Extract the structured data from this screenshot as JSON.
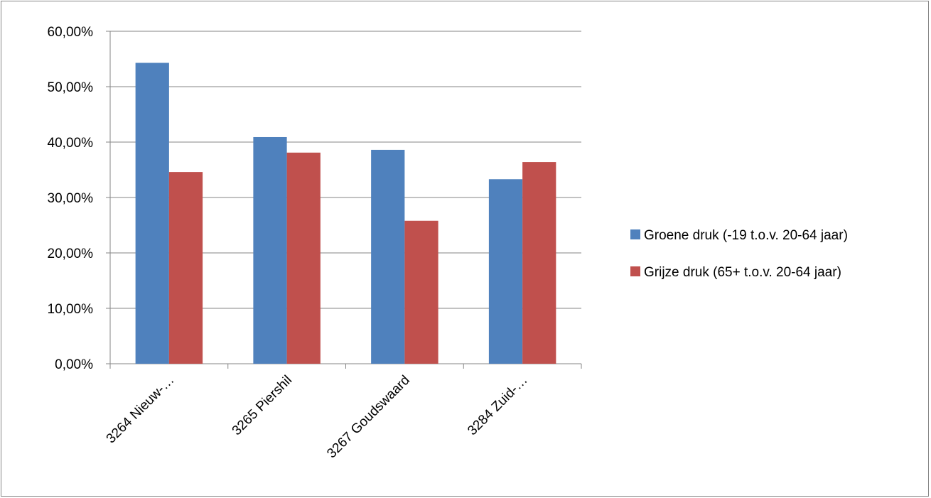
{
  "chart_data": {
    "type": "bar",
    "title": "",
    "xlabel": "",
    "ylabel": "",
    "categories": [
      "3264 Nieuw-…",
      "3265 Piershil",
      "3267 Goudswaard",
      "3284 Zuid-…"
    ],
    "series": [
      {
        "name": "Groene druk  (-19 t.o.v. 20-64 jaar)",
        "color": "#4F81BD",
        "values": [
          54.3,
          40.9,
          38.6,
          33.3
        ]
      },
      {
        "name": "Grijze druk  (65+ t.o.v. 20-64 jaar)",
        "color": "#C0504D",
        "values": [
          34.6,
          38.1,
          25.8,
          36.4
        ]
      }
    ],
    "ylim": [
      0,
      60
    ],
    "yticks": [
      0,
      10,
      20,
      30,
      40,
      50,
      60
    ],
    "ytick_labels": [
      "0,00%",
      "10,00%",
      "20,00%",
      "30,00%",
      "40,00%",
      "50,00%",
      "60,00%"
    ],
    "grid": true,
    "legend_position": "right"
  }
}
